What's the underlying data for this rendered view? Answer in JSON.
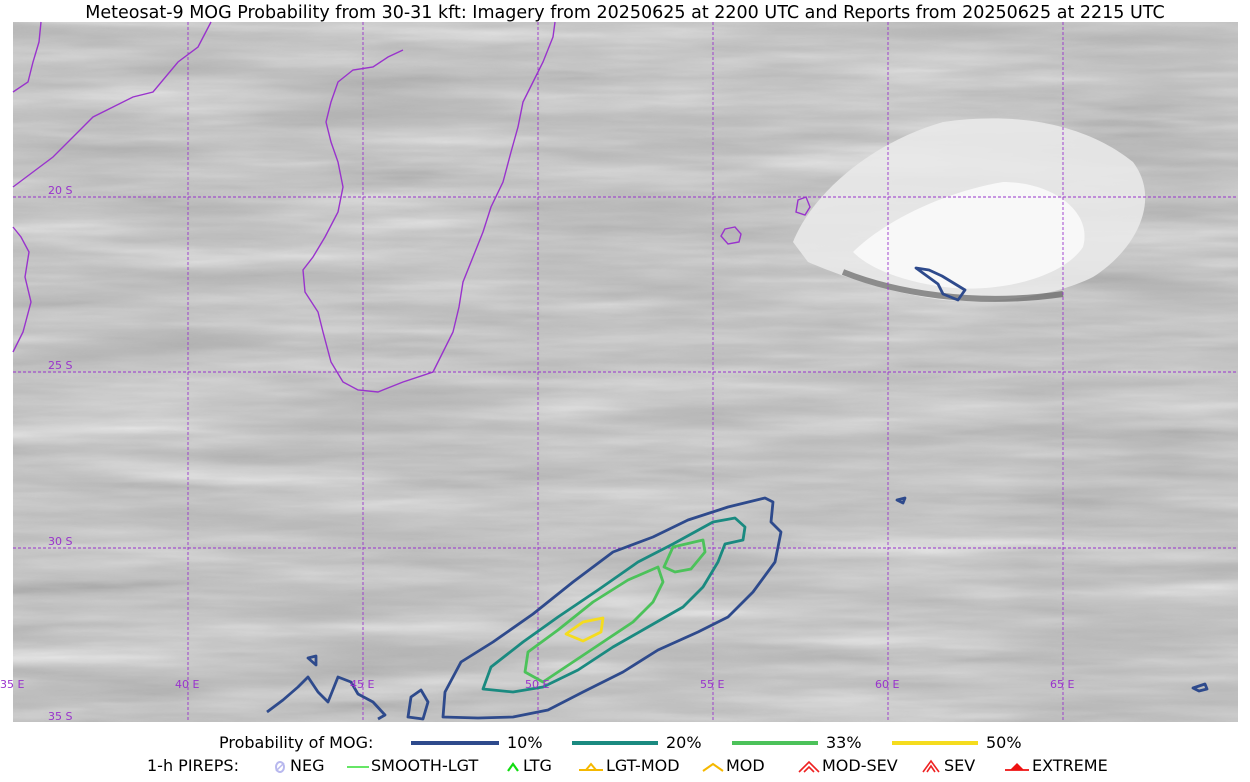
{
  "title": "Meteosat-9 MOG Probability from 30-31 kft: Imagery from 20250625 at 2200 UTC and Reports from 20250625 at 2215 UTC",
  "map": {
    "lat_labels": [
      "20 S",
      "25 S",
      "30 S",
      "35 S"
    ],
    "lon_labels": [
      "35 E",
      "40 E",
      "45 E",
      "50 E",
      "55 E",
      "60 E",
      "65 E"
    ],
    "colors": {
      "grid": "#9933cc",
      "coast": "#9933cc",
      "c10": "#2e4a8c",
      "c20": "#1a8a80",
      "c33": "#4cc25a",
      "c50": "#f5dc1e"
    }
  },
  "legend_prob": {
    "label": "Probability of MOG:",
    "items": [
      {
        "label": "10%",
        "color": "#2e4a8c"
      },
      {
        "label": "20%",
        "color": "#1a8a80"
      },
      {
        "label": "33%",
        "color": "#4cc25a"
      },
      {
        "label": "50%",
        "color": "#f5dc1e"
      }
    ]
  },
  "legend_pireps": {
    "label": "1-h PIREPS:",
    "items": [
      {
        "label": "NEG",
        "icon": "neg-circle-icon",
        "color": "#b8b8ee"
      },
      {
        "label": "SMOOTH-LGT",
        "icon": "line-icon",
        "color": "#33dd33"
      },
      {
        "label": "LTG",
        "icon": "caret-icon",
        "color": "#11dd11"
      },
      {
        "label": "LGT-MOD",
        "icon": "caret-bar-icon",
        "color": "#f5b800"
      },
      {
        "label": "MOD",
        "icon": "caret-icon",
        "color": "#f5b800"
      },
      {
        "label": "MOD-SEV",
        "icon": "double-caret-icon",
        "color": "#ee2222"
      },
      {
        "label": "SEV",
        "icon": "double-caret-icon",
        "color": "#ee2222"
      },
      {
        "label": "EXTREME",
        "icon": "filled-caret-icon",
        "color": "#ee1111"
      }
    ]
  }
}
